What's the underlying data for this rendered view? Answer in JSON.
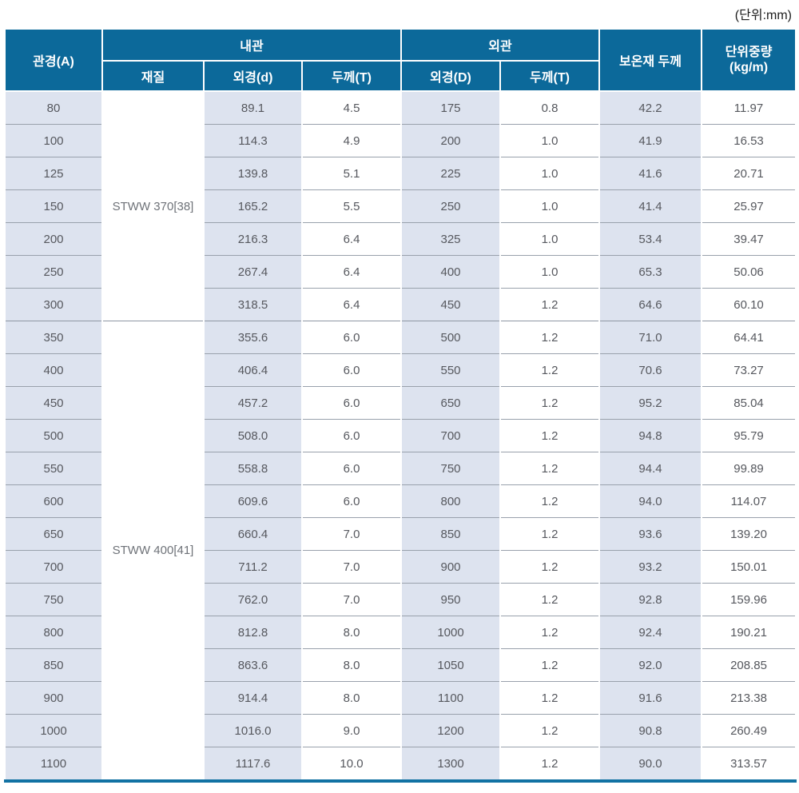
{
  "unit_label": "(단위:mm)",
  "colors": {
    "header_bg": "#0c699a",
    "shaded_cell": "#dde3ef",
    "row_line": "#99a1ac",
    "bottom_border": "#1272a3",
    "body_text": "#56585e"
  },
  "table": {
    "header": {
      "pipe_diameter": "관경(A)",
      "group_inner": "내관",
      "group_outer": "외관",
      "material": "재질",
      "inner_od": "외경(d)",
      "inner_thickness": "두께(T)",
      "outer_od": "외경(D)",
      "outer_thickness": "두께(T)",
      "insulation": "보온재 두께",
      "unit_weight_line1": "단위중량",
      "unit_weight_line2": "(kg/m)"
    },
    "columns": [
      "관경(A)",
      "재질",
      "내관 외경(d)",
      "내관 두께(T)",
      "외관 외경(D)",
      "외관 두께(T)",
      "보온재 두께",
      "단위중량(kg/m)"
    ],
    "groups": [
      {
        "material": "STWW 370[38]",
        "rows": [
          [
            "80",
            "89.1",
            "4.5",
            "175",
            "0.8",
            "42.2",
            "11.97"
          ],
          [
            "100",
            "114.3",
            "4.9",
            "200",
            "1.0",
            "41.9",
            "16.53"
          ],
          [
            "125",
            "139.8",
            "5.1",
            "225",
            "1.0",
            "41.6",
            "20.71"
          ],
          [
            "150",
            "165.2",
            "5.5",
            "250",
            "1.0",
            "41.4",
            "25.97"
          ],
          [
            "200",
            "216.3",
            "6.4",
            "325",
            "1.0",
            "53.4",
            "39.47"
          ],
          [
            "250",
            "267.4",
            "6.4",
            "400",
            "1.0",
            "65.3",
            "50.06"
          ],
          [
            "300",
            "318.5",
            "6.4",
            "450",
            "1.2",
            "64.6",
            "60.10"
          ]
        ]
      },
      {
        "material": "STWW 400[41]",
        "rows": [
          [
            "350",
            "355.6",
            "6.0",
            "500",
            "1.2",
            "71.0",
            "64.41"
          ],
          [
            "400",
            "406.4",
            "6.0",
            "550",
            "1.2",
            "70.6",
            "73.27"
          ],
          [
            "450",
            "457.2",
            "6.0",
            "650",
            "1.2",
            "95.2",
            "85.04"
          ],
          [
            "500",
            "508.0",
            "6.0",
            "700",
            "1.2",
            "94.8",
            "95.79"
          ],
          [
            "550",
            "558.8",
            "6.0",
            "750",
            "1.2",
            "94.4",
            "99.89"
          ],
          [
            "600",
            "609.6",
            "6.0",
            "800",
            "1.2",
            "94.0",
            "114.07"
          ],
          [
            "650",
            "660.4",
            "7.0",
            "850",
            "1.2",
            "93.6",
            "139.20"
          ],
          [
            "700",
            "711.2",
            "7.0",
            "900",
            "1.2",
            "93.2",
            "150.01"
          ],
          [
            "750",
            "762.0",
            "7.0",
            "950",
            "1.2",
            "92.8",
            "159.96"
          ],
          [
            "800",
            "812.8",
            "8.0",
            "1000",
            "1.2",
            "92.4",
            "190.21"
          ],
          [
            "850",
            "863.6",
            "8.0",
            "1050",
            "1.2",
            "92.0",
            "208.85"
          ],
          [
            "900",
            "914.4",
            "8.0",
            "1100",
            "1.2",
            "91.6",
            "213.38"
          ],
          [
            "1000",
            "1016.0",
            "9.0",
            "1200",
            "1.2",
            "90.8",
            "260.49"
          ],
          [
            "1100",
            "1117.6",
            "10.0",
            "1300",
            "1.2",
            "90.0",
            "313.57"
          ]
        ]
      }
    ]
  }
}
